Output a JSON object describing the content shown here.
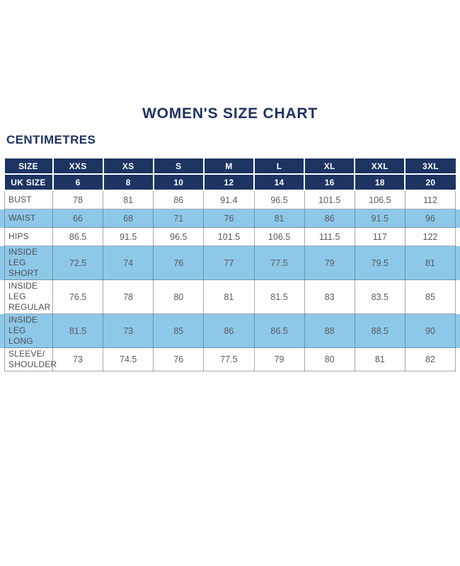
{
  "page": {
    "title": "WOMEN'S SIZE CHART",
    "unit_label": "CENTIMETRES"
  },
  "colors": {
    "navy_header": "#1d3462",
    "stripe_blue": "#8ec8e8",
    "title_text": "#1e3360",
    "cell_text": "#595b60"
  },
  "size_chart": {
    "header_rows": [
      {
        "label": "SIZE",
        "values": [
          "XXS",
          "XS",
          "S",
          "M",
          "L",
          "XL",
          "XXL",
          "3XL"
        ]
      },
      {
        "label": "UK SIZE",
        "values": [
          "6",
          "8",
          "10",
          "12",
          "14",
          "16",
          "18",
          "20"
        ]
      }
    ],
    "rows": [
      {
        "label": "BUST",
        "values": [
          "78",
          "81",
          "86",
          "91.4",
          "96.5",
          "101.5",
          "106.5",
          "112"
        ],
        "highlight": false
      },
      {
        "label": "WAIST",
        "values": [
          "66",
          "68",
          "71",
          "76",
          "81",
          "86",
          "91.5",
          "96"
        ],
        "highlight": true
      },
      {
        "label": "HIPS",
        "values": [
          "86.5",
          "91.5",
          "96.5",
          "101.5",
          "106.5",
          "111.5",
          "117",
          "122"
        ],
        "highlight": false
      },
      {
        "label": "INSIDE LEG\nSHORT",
        "values": [
          "72.5",
          "74",
          "76",
          "77",
          "77.5",
          "79",
          "79.5",
          "81"
        ],
        "highlight": true
      },
      {
        "label": "INSIDE LEG\nREGULAR",
        "values": [
          "76.5",
          "78",
          "80",
          "81",
          "81.5",
          "83",
          "83.5",
          "85"
        ],
        "highlight": false
      },
      {
        "label": "INSIDE LEG\nLONG",
        "values": [
          "81.5",
          "73",
          "85",
          "86",
          "86.5",
          "88",
          "88.5",
          "90"
        ],
        "highlight": true
      },
      {
        "label": "SLEEVE/\nSHOULDER",
        "values": [
          "73",
          "74.5",
          "76",
          "77.5",
          "79",
          "80",
          "81",
          "82"
        ],
        "highlight": false
      }
    ]
  }
}
